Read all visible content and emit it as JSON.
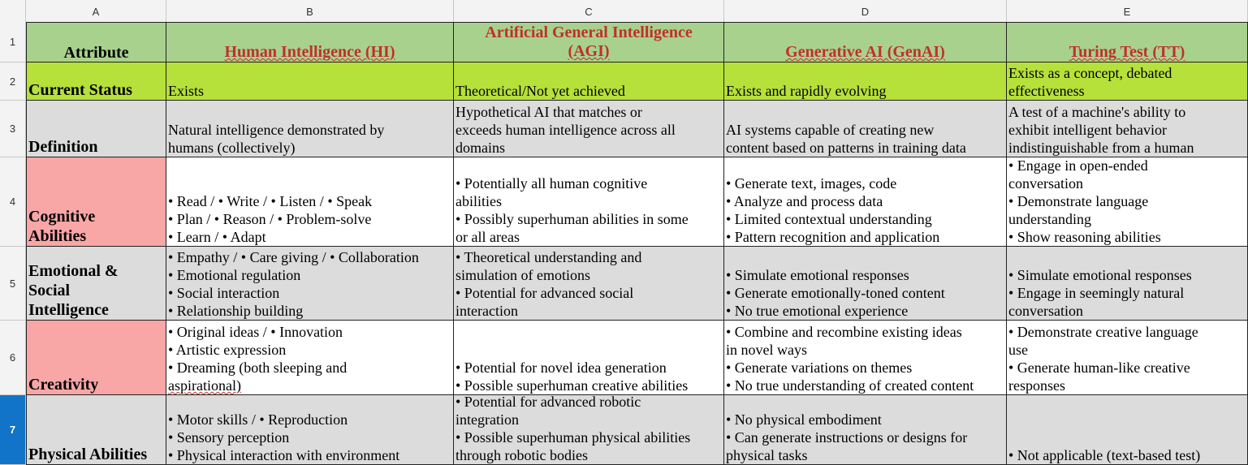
{
  "columns": [
    "A",
    "B",
    "C",
    "D",
    "E"
  ],
  "rows": [
    "1",
    "2",
    "3",
    "4",
    "5",
    "6",
    "7"
  ],
  "active_row": "7",
  "colors": {
    "header_fill": "#a9d18e",
    "status_fill": "#b6e03a",
    "gray_fill": "#dcdcdc",
    "pink_fill": "#f8a6a6",
    "header_text": "#c0302b",
    "active_row_header": "#1274c8"
  },
  "header": {
    "attribute": "Attribute",
    "hi": "Human Intelligence (HI)",
    "agi_line1": "Artificial General Intelligence",
    "agi_line2": "(AGI)",
    "genai": "Generative AI (GenAI)",
    "tt": "Turing Test (TT)"
  },
  "status": {
    "label": "Current Status",
    "hi": "Exists",
    "agi": "Theoretical/Not yet achieved",
    "genai": "Exists and rapidly evolving",
    "tt": [
      "Exists as a concept, debated",
      "effectiveness"
    ]
  },
  "definition": {
    "label": "Definition",
    "hi": [
      "Natural intelligence demonstrated by",
      "humans (collectively)"
    ],
    "agi": [
      "Hypothetical AI that matches or",
      "exceeds human intelligence across all",
      "domains"
    ],
    "genai": [
      "AI systems capable of creating new",
      "content based on patterns in training data"
    ],
    "tt": [
      "A test of a machine's ability to",
      "exhibit intelligent behavior",
      "indistinguishable from a human"
    ]
  },
  "cognitive": {
    "label": [
      "Cognitive",
      "Abilities"
    ],
    "hi": [
      "• Read / • Write / • Listen / • Speak",
      "• Plan / • Reason / • Problem-solve",
      "• Learn / • Adapt"
    ],
    "agi": [
      "• Potentially all human cognitive",
      "abilities",
      "• Possibly superhuman abilities in some",
      "or all areas"
    ],
    "genai": [
      "• Generate text, images, code",
      "• Analyze and process data",
      "• Limited contextual understanding",
      "• Pattern recognition and application"
    ],
    "tt": [
      "• Engage in open-ended",
      "conversation",
      "• Demonstrate language",
      "understanding",
      "• Show reasoning abilities"
    ]
  },
  "emotional": {
    "label": [
      "Emotional &",
      "Social",
      "Intelligence"
    ],
    "hi": [
      "• Empathy / • Care giving / • Collaboration",
      "• Emotional regulation",
      "• Social interaction",
      "• Relationship building"
    ],
    "agi": [
      "• Theoretical understanding and",
      "simulation of emotions",
      "• Potential for advanced social",
      "interaction"
    ],
    "genai": [
      "• Simulate emotional responses",
      "• Generate emotionally-toned content",
      "• No true emotional experience"
    ],
    "tt": [
      "• Simulate emotional responses",
      "• Engage in seemingly natural",
      "conversation"
    ]
  },
  "creativity": {
    "label": "Creativity",
    "hi": [
      "• Original ideas / • Innovation",
      "• Artistic expression",
      "• Dreaming (both sleeping and",
      "aspirational)"
    ],
    "agi": [
      "• Potential for novel idea generation",
      "• Possible superhuman creative abilities"
    ],
    "genai": [
      "• Combine and recombine existing ideas",
      "in novel ways",
      "• Generate variations on themes",
      "• No true understanding of created content"
    ],
    "tt": [
      "• Demonstrate creative language",
      "use",
      "• Generate human-like creative",
      "responses"
    ]
  },
  "physical": {
    "label": "Physical Abilities",
    "hi": [
      "• Motor skills / • Reproduction",
      "• Sensory perception",
      "• Physical interaction with environment"
    ],
    "agi": [
      "• Potential for advanced robotic",
      "integration",
      "• Possible superhuman physical abilities",
      "through robotic bodies"
    ],
    "genai": [
      "• No physical embodiment",
      "• Can generate instructions or designs for",
      "physical tasks"
    ],
    "tt": [
      "• Not applicable (text-based test)"
    ]
  }
}
